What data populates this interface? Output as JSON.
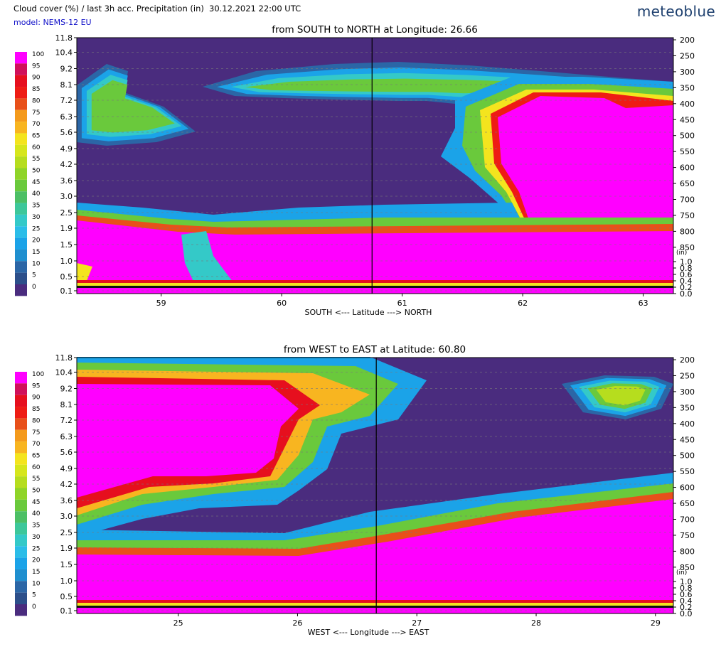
{
  "header": {
    "title": "Cloud cover (%) / last 3h acc. Precipitation (in)",
    "datetime": "30.12.2021  22:00 UTC",
    "model": "model: NEMS-12 EU",
    "brand": "meteoblue"
  },
  "colorscale": {
    "levels": [
      100,
      95,
      90,
      85,
      80,
      75,
      70,
      65,
      60,
      55,
      50,
      45,
      40,
      35,
      30,
      25,
      20,
      15,
      10,
      5,
      0
    ],
    "colors": {
      "0": "#4a2c7e",
      "5": "#2c4f8a",
      "10": "#2b66a6",
      "15": "#1f8fcf",
      "20": "#1ba3e8",
      "25": "#2bbde8",
      "30": "#34c9c8",
      "35": "#3dc79a",
      "40": "#4cbf65",
      "45": "#6ac93c",
      "50": "#8fd428",
      "55": "#b6dd1e",
      "60": "#d6e61c",
      "65": "#f4e41e",
      "70": "#f8b520",
      "75": "#f49a1c",
      "80": "#e8501a",
      "85": "#ee1c14",
      "90": "#e60f1e",
      "95": "#d0105a",
      "100": "#ff00ff"
    }
  },
  "chart_data": [
    {
      "type": "heatmap",
      "title": "from SOUTH to NORTH at Longitude:  26.66",
      "xlabel": "SOUTH <---   Latitude   ---> NORTH",
      "xticks": [
        59,
        60,
        61,
        62,
        63
      ],
      "xlim": [
        58.3,
        63.25
      ],
      "marker_x": 60.75,
      "y_left_ticks": [
        "11.8",
        "10.4",
        "9.2",
        "8.1",
        "7.2",
        "6.3",
        "5.6",
        "4.9",
        "4.2",
        "3.6",
        "3.0",
        "2.5",
        "1.9",
        "1.5",
        "1.0",
        "0.5",
        "0.1"
      ],
      "y_right_pressure": [
        "200",
        "250",
        "300",
        "350",
        "400",
        "450",
        "500",
        "550",
        "600",
        "650",
        "700",
        "750",
        "800",
        "850"
      ],
      "y_right_precip_unit": "(in)",
      "y_right_precip": [
        "1.0",
        "0.8",
        "0.6",
        "0.4",
        "0.2",
        "0.0"
      ],
      "cloud_layers": [
        {
          "description_level": 100,
          "region": "low cloud 0.1-1.9 km south, thick deck 60.0-63.25"
        },
        {
          "description_level": 100,
          "region": "deep cloud 61.8-63.25 up to 8 km"
        },
        {
          "description_level": 25,
          "region": "thin high cloud 8-9 km across middle"
        }
      ]
    },
    {
      "type": "heatmap",
      "title": "from WEST to EAST at Latitude:  60.80",
      "xlabel": "WEST <---   Longitude   ---> EAST",
      "xticks": [
        25,
        26,
        27,
        28,
        29
      ],
      "xlim": [
        24.15,
        29.15
      ],
      "marker_x": 26.66,
      "y_left_ticks": [
        "11.8",
        "10.4",
        "9.2",
        "8.1",
        "7.2",
        "6.3",
        "5.6",
        "4.9",
        "4.2",
        "3.6",
        "3.0",
        "2.5",
        "1.9",
        "1.5",
        "1.0",
        "0.5",
        "0.1"
      ],
      "y_right_pressure": [
        "200",
        "250",
        "300",
        "350",
        "400",
        "450",
        "500",
        "550",
        "600",
        "650",
        "700",
        "750",
        "800",
        "850"
      ],
      "y_right_precip_unit": "(in)",
      "y_right_precip": [
        "1.0",
        "0.8",
        "0.6",
        "0.4",
        "0.2",
        "0.0"
      ],
      "cloud_layers": [
        {
          "description_level": 100,
          "region": "deep cloud west 24.2-25.9 up to 8.5 km"
        },
        {
          "description_level": 100,
          "region": "low deck 0.1-1.6 km west, rising to 3.8 km east"
        },
        {
          "description_level": 25,
          "region": "high cloud 9-10 km near 28.7"
        }
      ]
    }
  ]
}
